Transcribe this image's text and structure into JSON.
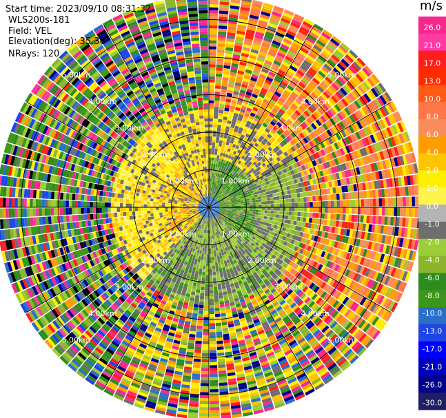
{
  "header": {
    "start_time": "Start time: 2023/09/10 08:31:32",
    "site": "WLS200s-181",
    "field": "Field: VEL",
    "elevation": "Elevation(deg): 35.30",
    "nrays": "NRays: 120"
  },
  "colorbar": {
    "unit": "m/s",
    "ticks": [
      "26.0",
      "21.0",
      "17.0",
      "13.0",
      "10.0",
      "8.0",
      "6.0",
      "4.0",
      "2.0",
      "1.0",
      "0.0",
      "-1.0",
      "-2.0",
      "-4.0",
      "-6.0",
      "-8.0",
      "-10.0",
      "-13.0",
      "-17.0",
      "-21.0",
      "-26.0",
      "-30.0"
    ],
    "colors": [
      "#f7288c",
      "#ff3aa4",
      "#ff1e1e",
      "#ff2a00",
      "#ff5a12",
      "#ff7648",
      "#fa8c5a",
      "#ff9c00",
      "#ffc400",
      "#ffee00",
      "#fff44a",
      "#b4b4b4",
      "#6e6e6e",
      "#9ccc36",
      "#8cb42c",
      "#2e8c1e",
      "#3c961a",
      "#2a6ec8",
      "#1e46e6",
      "#0000ff",
      "#0000c0",
      "#00008c",
      "#1e1e64"
    ]
  },
  "chart_data": {
    "type": "polar-ppi",
    "field": "VEL",
    "units": "m/s",
    "nrays": 120,
    "elevation_deg": 35.3,
    "range_rings_km": [
      1.0,
      2.0,
      3.0,
      4.0,
      5.0
    ],
    "range_ring_labels": [
      "1.00km",
      "2.00km",
      "3.00km",
      "4.00km",
      "5.00km"
    ],
    "spokes_deg": [
      0,
      30,
      60,
      90,
      120,
      150,
      180,
      210,
      240,
      270,
      300,
      330
    ],
    "max_range_km": 5.6,
    "sectors": [
      {
        "az_from": 0,
        "az_to": 60,
        "inner": "green/olive",
        "outer": "salmon/orange/red"
      },
      {
        "az_from": 60,
        "az_to": 150,
        "inner": "green/olive",
        "outer": "orange/yellow/pink"
      },
      {
        "az_from": 150,
        "az_to": 240,
        "inner": "olive/grey",
        "outer": "green/blue/pink"
      },
      {
        "az_from": 240,
        "az_to": 330,
        "inner": "yellow/orange",
        "outer": "green/blue/pink"
      },
      {
        "az_from": 330,
        "az_to": 360,
        "inner": "yellow",
        "outer": "orange/green"
      }
    ]
  }
}
